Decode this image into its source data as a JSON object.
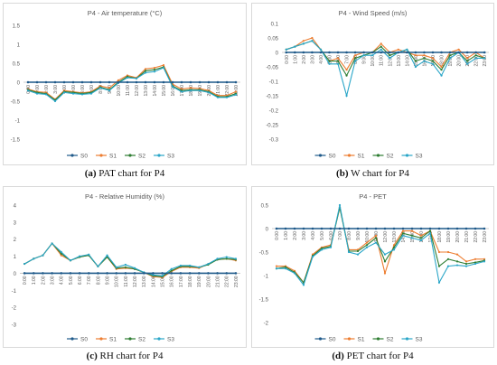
{
  "colors": {
    "S0": "#1f5a8a",
    "S1": "#ed7d31",
    "S2": "#2e7d32",
    "S3": "#2aa6c8",
    "axis": "#bfbfbf",
    "grid": "#e6e6e6",
    "text": "#595959"
  },
  "hours": [
    "0:00",
    "1:00",
    "2:00",
    "3:00",
    "4:00",
    "5:00",
    "6:00",
    "7:00",
    "8:00",
    "9:00",
    "10:00",
    "11:00",
    "12:00",
    "13:00",
    "14:00",
    "15:00",
    "16:00",
    "17:00",
    "18:00",
    "19:00",
    "20:00",
    "21:00",
    "22:00",
    "23:00"
  ],
  "chart_data": [
    {
      "id": "pat",
      "type": "line",
      "title": "P4 - Air temperature (°C)",
      "caption_letter": "(a)",
      "caption_text": "PAT chart for P4",
      "ylim": [
        -1.5,
        1.5
      ],
      "yticks": [
        -1.5,
        -1,
        -0.5,
        0,
        0.5,
        1,
        1.5
      ],
      "ytick_labels": [
        "-1.5",
        "-1",
        "-0.5",
        "0",
        "0.5",
        "1",
        "1.5"
      ],
      "series": [
        {
          "name": "S0",
          "values": [
            0,
            0,
            0,
            0,
            0,
            0,
            0,
            0,
            0,
            0,
            0,
            0,
            0,
            0,
            0,
            0,
            0,
            0,
            0,
            0,
            0,
            0,
            0,
            0
          ]
        },
        {
          "name": "S1",
          "values": [
            -0.18,
            -0.25,
            -0.27,
            -0.45,
            -0.22,
            -0.25,
            -0.28,
            -0.25,
            -0.1,
            -0.15,
            0.05,
            0.18,
            0.12,
            0.35,
            0.38,
            0.45,
            -0.05,
            -0.18,
            -0.15,
            -0.17,
            -0.22,
            -0.35,
            -0.35,
            -0.25
          ]
        },
        {
          "name": "S2",
          "values": [
            -0.2,
            -0.27,
            -0.3,
            -0.47,
            -0.25,
            -0.27,
            -0.3,
            -0.27,
            -0.13,
            -0.2,
            0.0,
            0.15,
            0.1,
            0.3,
            0.33,
            0.4,
            -0.1,
            -0.22,
            -0.2,
            -0.2,
            -0.25,
            -0.38,
            -0.38,
            -0.3
          ]
        },
        {
          "name": "S3",
          "values": [
            -0.22,
            -0.3,
            -0.32,
            -0.5,
            -0.27,
            -0.3,
            -0.32,
            -0.3,
            -0.15,
            -0.22,
            -0.02,
            0.12,
            0.1,
            0.25,
            0.28,
            0.38,
            -0.12,
            -0.25,
            -0.22,
            -0.22,
            -0.27,
            -0.4,
            -0.4,
            -0.33
          ]
        }
      ]
    },
    {
      "id": "w",
      "type": "line",
      "title": "P4 - Wind Speed (m/s)",
      "caption_letter": "(b)",
      "caption_text": "W chart for P4",
      "ylim": [
        -0.3,
        0.1
      ],
      "yticks": [
        -0.3,
        -0.25,
        -0.2,
        -0.15,
        -0.1,
        -0.05,
        0,
        0.05,
        0.1
      ],
      "ytick_labels": [
        "-0.3",
        "-0.25",
        "-0.2",
        "-0.15",
        "-0.1",
        "-0.05",
        "0",
        "0.05",
        "0.1"
      ],
      "series": [
        {
          "name": "S0",
          "values": [
            0,
            0,
            0,
            0,
            0,
            0,
            0,
            0,
            0,
            0,
            0,
            0,
            0,
            0,
            0,
            0,
            0,
            0,
            0,
            0,
            0,
            0,
            0,
            0
          ]
        },
        {
          "name": "S1",
          "values": [
            0.01,
            0.02,
            0.04,
            0.05,
            0.01,
            -0.03,
            -0.02,
            -0.06,
            -0.01,
            0.0,
            0.0,
            0.03,
            0.0,
            0.01,
            0.0,
            -0.01,
            -0.01,
            -0.02,
            -0.05,
            0.0,
            0.01,
            -0.02,
            0.0,
            -0.02
          ]
        },
        {
          "name": "S2",
          "values": [
            0.01,
            0.02,
            0.03,
            0.04,
            0.01,
            -0.03,
            -0.03,
            -0.08,
            -0.02,
            -0.01,
            0.0,
            0.02,
            -0.01,
            0.0,
            0.01,
            -0.03,
            -0.02,
            -0.03,
            -0.06,
            -0.01,
            0.0,
            -0.03,
            -0.01,
            -0.02
          ]
        },
        {
          "name": "S3",
          "values": [
            0.01,
            0.02,
            0.03,
            0.04,
            0.01,
            -0.04,
            -0.04,
            -0.15,
            -0.03,
            -0.01,
            -0.01,
            0.01,
            -0.02,
            0.0,
            0.01,
            -0.05,
            -0.03,
            -0.04,
            -0.08,
            -0.02,
            0.0,
            -0.04,
            -0.02,
            -0.02
          ]
        }
      ]
    },
    {
      "id": "rh",
      "type": "line",
      "title": "P4 - Relative Humidity (%)",
      "caption_letter": "(c)",
      "caption_text": "RH chart for P4",
      "ylim": [
        -3,
        4
      ],
      "yticks": [
        -3,
        -2,
        -1,
        0,
        1,
        2,
        3,
        4
      ],
      "ytick_labels": [
        "-3",
        "-2",
        "-1",
        "0",
        "1",
        "2",
        "3",
        "4"
      ],
      "series": [
        {
          "name": "S0",
          "values": [
            0,
            0,
            0,
            0,
            0,
            0,
            0,
            0,
            0,
            0,
            0,
            0,
            0,
            0,
            0,
            0,
            0,
            0,
            0,
            0,
            0,
            0,
            0,
            0
          ]
        },
        {
          "name": "S1",
          "values": [
            0.55,
            0.85,
            1.05,
            1.75,
            1.05,
            0.75,
            0.95,
            1.05,
            0.4,
            0.95,
            0.25,
            0.3,
            0.25,
            0.05,
            -0.2,
            -0.25,
            0.1,
            0.35,
            0.35,
            0.3,
            0.55,
            0.8,
            0.85,
            0.75
          ]
        },
        {
          "name": "S2",
          "values": [
            0.55,
            0.85,
            1.05,
            1.75,
            1.15,
            0.75,
            0.95,
            1.05,
            0.4,
            0.95,
            0.3,
            0.35,
            0.25,
            0.05,
            -0.15,
            -0.2,
            0.15,
            0.4,
            0.4,
            0.35,
            0.5,
            0.8,
            0.85,
            0.8
          ]
        },
        {
          "name": "S3",
          "values": [
            0.55,
            0.85,
            1.05,
            1.75,
            1.25,
            0.75,
            1.0,
            1.1,
            0.4,
            1.05,
            0.35,
            0.5,
            0.3,
            0.05,
            -0.1,
            -0.15,
            0.25,
            0.45,
            0.45,
            0.35,
            0.55,
            0.85,
            0.95,
            0.85
          ]
        }
      ]
    },
    {
      "id": "pet",
      "type": "line",
      "title": "P4 - PET",
      "caption_letter": "(d)",
      "caption_text": "PET chart for P4",
      "ylim": [
        -2,
        0.5
      ],
      "yticks": [
        -2,
        -1.5,
        -1,
        -0.5,
        0,
        0.5
      ],
      "ytick_labels": [
        "-2",
        "-1.5",
        "-1",
        "-0.5",
        "0",
        "0.5"
      ],
      "series": [
        {
          "name": "S0",
          "values": [
            0,
            0,
            0,
            0,
            0,
            0,
            0,
            0,
            0,
            0,
            0,
            0,
            0,
            0,
            0,
            0,
            0,
            0,
            0,
            0,
            0,
            0,
            0,
            0
          ]
        },
        {
          "name": "S1",
          "values": [
            -0.8,
            -0.8,
            -0.9,
            -1.15,
            -0.55,
            -0.4,
            -0.35,
            0.45,
            -0.45,
            -0.45,
            -0.3,
            -0.15,
            -0.95,
            -0.35,
            -0.05,
            -0.05,
            -0.15,
            -0.05,
            -0.5,
            -0.5,
            -0.55,
            -0.7,
            -0.65,
            -0.65
          ]
        },
        {
          "name": "S2",
          "values": [
            -0.85,
            -0.82,
            -0.93,
            -1.15,
            -0.58,
            -0.42,
            -0.38,
            0.45,
            -0.48,
            -0.48,
            -0.35,
            -0.2,
            -0.7,
            -0.4,
            -0.1,
            -0.15,
            -0.2,
            -0.05,
            -0.8,
            -0.65,
            -0.7,
            -0.75,
            -0.72,
            -0.68
          ]
        },
        {
          "name": "S3",
          "values": [
            -0.85,
            -0.85,
            -0.95,
            -1.2,
            -0.6,
            -0.45,
            -0.4,
            0.5,
            -0.5,
            -0.55,
            -0.4,
            -0.3,
            -0.55,
            -0.45,
            -0.15,
            -0.2,
            -0.25,
            -0.1,
            -1.15,
            -0.8,
            -0.78,
            -0.8,
            -0.75,
            -0.7
          ]
        }
      ]
    }
  ]
}
